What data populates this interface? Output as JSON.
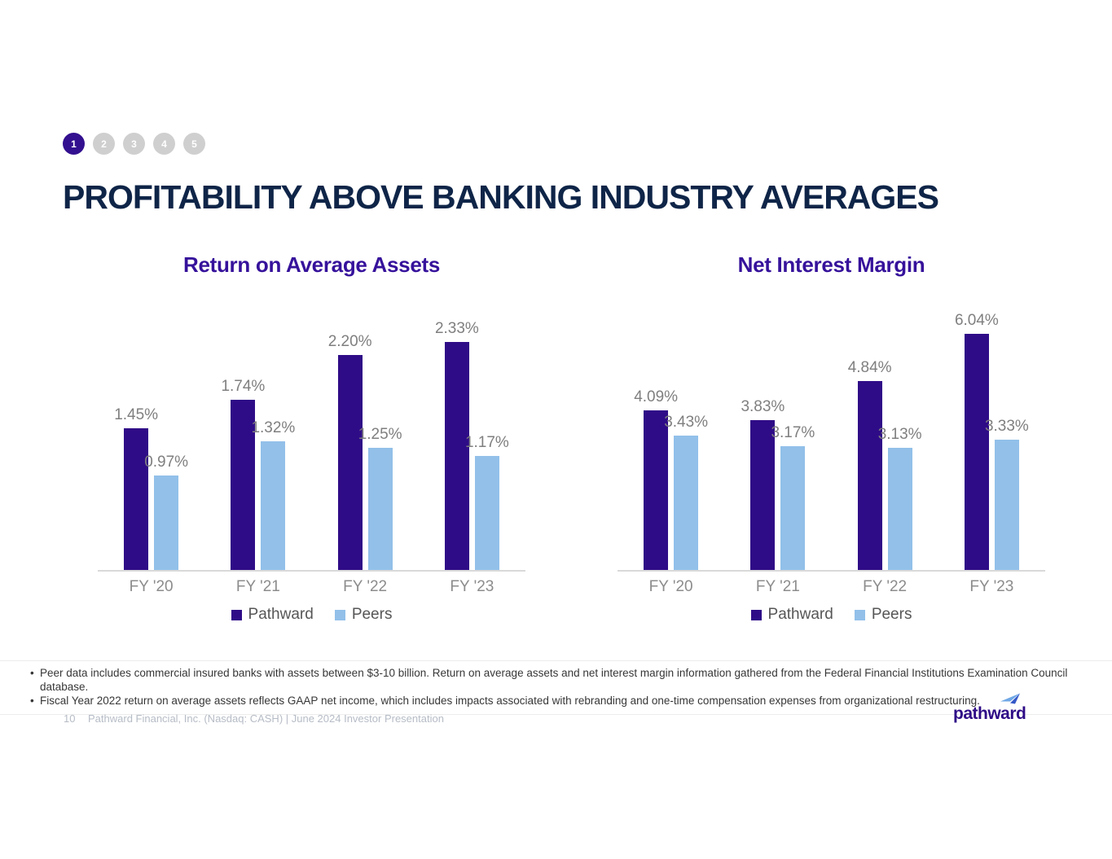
{
  "stepper": {
    "steps": [
      {
        "label": "1",
        "active": true
      },
      {
        "label": "2",
        "active": false
      },
      {
        "label": "3",
        "active": false
      },
      {
        "label": "4",
        "active": false
      },
      {
        "label": "5",
        "active": false
      }
    ]
  },
  "header": {
    "title": "PROFITABILITY ABOVE BANKING INDUSTRY AVERAGES"
  },
  "colors": {
    "title_navy": "#0F2548",
    "chart_title_purple": "#36129B",
    "pathward_purple": "#2F0C87",
    "peers_blue": "#92C0E9",
    "value_label_gray": "#7F7F7F",
    "axis_label_gray": "#8C8C8C",
    "axis_line_gray": "#D9D9D9",
    "stepper_active": "#33108F",
    "stepper_inactive": "#CFCFCF",
    "footer_gray": "#B6BCC6",
    "logo_purple": "#2E0C86",
    "logo_arrow_light_blue": "#6FA8E6",
    "logo_arrow_dark_blue": "#3558C8"
  },
  "chart_data": [
    {
      "type": "bar",
      "title": "Return on Average Assets",
      "categories": [
        "FY '20",
        "FY '21",
        "FY '22",
        "FY '23"
      ],
      "series": [
        {
          "name": "Pathward",
          "color": "#2F0C87",
          "values": [
            1.45,
            1.74,
            2.2,
            2.33
          ]
        },
        {
          "name": "Peers",
          "color": "#92C0E9",
          "values": [
            0.97,
            1.32,
            1.25,
            1.17
          ]
        }
      ],
      "labels": [
        [
          "1.45%",
          "1.74%",
          "2.20%",
          "2.33%"
        ],
        [
          "0.97%",
          "1.32%",
          "1.25%",
          "1.17%"
        ]
      ],
      "xlabel": "",
      "ylabel": "",
      "ylim": [
        0,
        2.5
      ],
      "grid": false,
      "legend_position": "bottom"
    },
    {
      "type": "bar",
      "title": "Net Interest Margin",
      "categories": [
        "FY '20",
        "FY '21",
        "FY '22",
        "FY '23"
      ],
      "series": [
        {
          "name": "Pathward",
          "color": "#2F0C87",
          "values": [
            4.09,
            3.83,
            4.84,
            6.04
          ]
        },
        {
          "name": "Peers",
          "color": "#92C0E9",
          "values": [
            3.43,
            3.17,
            3.13,
            3.33
          ]
        }
      ],
      "labels": [
        [
          "4.09%",
          "3.83%",
          "4.84%",
          "6.04%"
        ],
        [
          "3.43%",
          "3.17%",
          "3.13%",
          "3.33%"
        ]
      ],
      "xlabel": "",
      "ylabel": "",
      "ylim": [
        0,
        6.25
      ],
      "grid": false,
      "legend_position": "bottom"
    }
  ],
  "footnotes": [
    "Peer data includes commercial insured banks with assets between $3-10 billion. Return on average assets and net interest margin information gathered from the Federal Financial Institutions Examination Council database.",
    "Fiscal Year 2022 return on average assets reflects GAAP net income, which includes impacts associated with rebranding and one-time compensation expenses from organizational restructuring."
  ],
  "footer": {
    "page_number": "10",
    "text": "Pathward Financial, Inc. (Nasdaq: CASH) | June 2024 Investor Presentation",
    "logo_text": "pathward"
  }
}
